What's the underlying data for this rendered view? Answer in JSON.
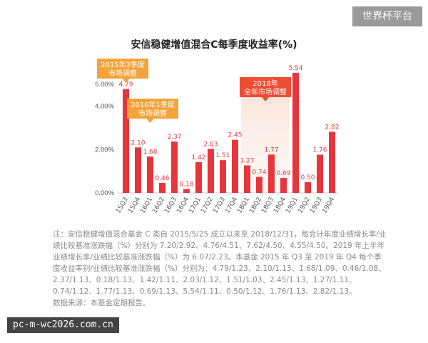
{
  "watermark_top": "世界杯平台",
  "watermark_bottom": "pc-m-wc2026.com.cn",
  "note_text": "注：安信稳健增值混合基金 C 类自 2015/5/25 成立以来至 2018/12/31，每会计年度业绩增长率/业绩比较基准涨跌幅（%）分别为 7.20/2.92、4.76/4.51、7.62/4.50、4.55/4.50。2019 年上半年业绩增长率/业绩比较基准涨跌幅（%）为 6.07/2.23。本基金 2015 年 Q3 至 2019 年 Q4 每个季度收益率别/业绩比较基准涨跌幅（%）分别为：4.79/1.23、2.10/1.13、1.68/1.09、0.46/1.08、2.37/1.13、0.18/1.13、1.42/1.11、2.03/1.12、1.51/1.03、2.45/1.13、1.27/1.11、0.74/1.12、1.77/1.13、0.69/1.13、5.54/1.11、0.50/1.12、1.76/1.13、2.82/1.13。",
  "source_text": "数据来源：本基金定期报告。",
  "colors": {
    "bar": "#e8353b",
    "label": "#e8353b",
    "callout_orange": "#f5a33a",
    "callout_red": "#ec4d33",
    "highlight": "#fbe3da"
  },
  "chart_data": {
    "type": "bar",
    "title": "安信稳健增值混合C每季度收益率(%)",
    "categories": [
      "15Q3",
      "15Q4",
      "16Q1",
      "16Q2",
      "16Q3",
      "16Q4",
      "17Q1",
      "17Q2",
      "17Q3",
      "17Q4",
      "18Q1",
      "18Q2",
      "18Q3",
      "18Q4",
      "19Q1",
      "19Q2",
      "19Q3",
      "19Q4"
    ],
    "values": [
      4.79,
      2.1,
      1.68,
      0.46,
      2.37,
      0.18,
      1.42,
      2.03,
      1.51,
      2.45,
      1.27,
      0.74,
      1.77,
      0.69,
      5.54,
      0.5,
      1.76,
      2.82
    ],
    "value_labels": [
      "4.79",
      "2.10",
      "1.68",
      "0.46",
      "2.37",
      "0.18",
      "1.42",
      "2.03",
      "1.51",
      "2.45",
      "1.27",
      "0.74",
      "1.77",
      "0.69",
      "5.54",
      "0.50",
      "1.76",
      "2.82"
    ],
    "yticks": [
      0,
      2,
      4,
      5
    ],
    "ytick_labels": [
      "0.00%",
      "2.00%",
      "4.00%",
      "5.00%"
    ],
    "ylim": [
      0,
      5.7
    ],
    "grid": false,
    "annotations": [
      {
        "lines": [
          "2015年3季度",
          "市场调整"
        ],
        "category": "15Q3",
        "style": "orange"
      },
      {
        "lines": [
          "2016年1季度",
          "市场调整"
        ],
        "category": "16Q1",
        "style": "orange"
      },
      {
        "lines": [
          "2018年",
          "全年市场调整"
        ],
        "category_range": [
          "18Q1",
          "18Q4"
        ],
        "style": "red"
      }
    ]
  }
}
